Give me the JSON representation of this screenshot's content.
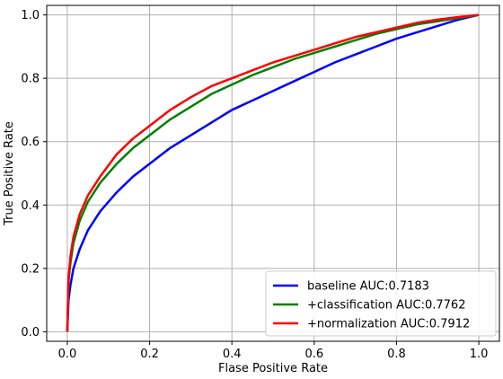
{
  "chart_data": {
    "type": "line",
    "xlabel": "Flase Positive Rate",
    "ylabel": "True Positive Rate",
    "xlim": [
      -0.05,
      1.05
    ],
    "ylim": [
      -0.03,
      1.03
    ],
    "xticks": [
      "0.0",
      "0.2",
      "0.4",
      "0.6",
      "0.8",
      "1.0"
    ],
    "yticks": [
      "0.0",
      "0.2",
      "0.4",
      "0.6",
      "0.8",
      "1.0"
    ],
    "grid": true,
    "legend_position": "lower-right",
    "series": [
      {
        "name": "baseline AUC:0.7183",
        "color": "#0000ff",
        "x": [
          0.0,
          0.003,
          0.008,
          0.015,
          0.03,
          0.05,
          0.08,
          0.12,
          0.16,
          0.2,
          0.25,
          0.3,
          0.35,
          0.4,
          0.45,
          0.5,
          0.55,
          0.6,
          0.65,
          0.7,
          0.75,
          0.8,
          0.85,
          0.9,
          0.95,
          1.0
        ],
        "y": [
          0.0,
          0.1,
          0.15,
          0.2,
          0.26,
          0.32,
          0.38,
          0.44,
          0.49,
          0.53,
          0.58,
          0.62,
          0.66,
          0.7,
          0.73,
          0.76,
          0.79,
          0.82,
          0.85,
          0.875,
          0.9,
          0.925,
          0.945,
          0.965,
          0.985,
          1.0
        ]
      },
      {
        "name": "+classification AUC:0.7762",
        "color": "#008000",
        "x": [
          0.0,
          0.003,
          0.008,
          0.015,
          0.03,
          0.05,
          0.08,
          0.12,
          0.16,
          0.2,
          0.25,
          0.3,
          0.35,
          0.4,
          0.45,
          0.5,
          0.55,
          0.6,
          0.65,
          0.7,
          0.75,
          0.8,
          0.85,
          0.9,
          0.95,
          1.0
        ],
        "y": [
          0.0,
          0.16,
          0.22,
          0.28,
          0.35,
          0.41,
          0.47,
          0.53,
          0.58,
          0.62,
          0.67,
          0.71,
          0.75,
          0.78,
          0.81,
          0.835,
          0.86,
          0.88,
          0.9,
          0.92,
          0.94,
          0.955,
          0.97,
          0.98,
          0.99,
          1.0
        ]
      },
      {
        "name": "+normalization AUC:0.7912",
        "color": "#ff0000",
        "x": [
          0.0,
          0.003,
          0.008,
          0.015,
          0.03,
          0.05,
          0.08,
          0.12,
          0.16,
          0.2,
          0.25,
          0.3,
          0.35,
          0.4,
          0.45,
          0.5,
          0.55,
          0.6,
          0.65,
          0.7,
          0.75,
          0.8,
          0.85,
          0.9,
          0.95,
          1.0
        ],
        "y": [
          0.0,
          0.17,
          0.24,
          0.3,
          0.37,
          0.43,
          0.49,
          0.56,
          0.61,
          0.65,
          0.7,
          0.74,
          0.775,
          0.8,
          0.825,
          0.85,
          0.87,
          0.89,
          0.91,
          0.93,
          0.945,
          0.96,
          0.975,
          0.985,
          0.993,
          1.0
        ]
      }
    ]
  }
}
